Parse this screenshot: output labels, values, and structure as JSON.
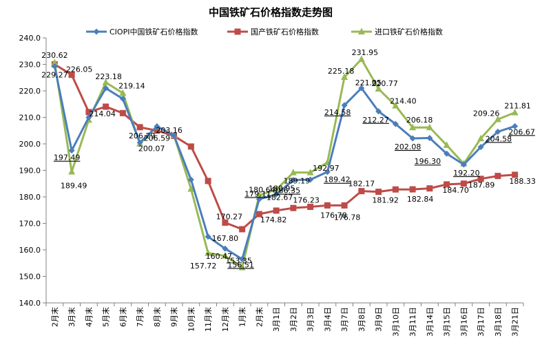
{
  "chart_data": {
    "type": "line",
    "title": "中国铁矿石价格指数走势图",
    "xlabel": "",
    "ylabel": "",
    "ylim": [
      140.0,
      240.0
    ],
    "yticks": [
      "140.0",
      "150.0",
      "160.0",
      "170.0",
      "180.0",
      "190.0",
      "200.0",
      "210.0",
      "220.0",
      "230.0",
      "240.0"
    ],
    "grid": false,
    "legend_position": "top",
    "categories": [
      "2月末",
      "3月末",
      "4月末",
      "5月末",
      "6月末",
      "7月末",
      "8月末",
      "9月末",
      "10月末",
      "11月末",
      "12月末",
      "1月末",
      "2月末",
      "3月1日",
      "3月2日",
      "3月3日",
      "3月4日",
      "3月7日",
      "3月8日",
      "3月9日",
      "3月10日",
      "3月11日",
      "3月14日",
      "3月15日",
      "3月16日",
      "3月17日",
      "3月18日",
      "3月21日"
    ],
    "series": [
      {
        "name": "CIOPI中国铁矿石价格指数",
        "color": "#4a7ebb",
        "marker": "diamond",
        "values": [
          229.27,
          197.49,
          210.0,
          221.0,
          217.0,
          200.5,
          206.59,
          203.16,
          186.5,
          165.0,
          160.47,
          156.51,
          179.11,
          180.95,
          186.35,
          186.5,
          189.42,
          214.58,
          221.05,
          212.27,
          207.5,
          202.08,
          202.2,
          196.3,
          192.2,
          198.8,
          204.58,
          206.67
        ]
      },
      {
        "name": "国产铁矿石价格指数",
        "color": "#be4b48",
        "marker": "square",
        "values": [
          230.0,
          226.05,
          212.0,
          214.04,
          211.6,
          206.29,
          205.0,
          203.0,
          199.0,
          186.0,
          170.27,
          167.8,
          173.5,
          174.82,
          175.8,
          176.23,
          176.78,
          176.78,
          182.17,
          181.92,
          182.8,
          182.84,
          183.2,
          184.7,
          185.0,
          186.8,
          187.89,
          188.33
        ]
      },
      {
        "name": "进口铁矿石价格指数",
        "color": "#98b954",
        "marker": "triangle",
        "values": [
          230.62,
          189.49,
          209.0,
          223.18,
          219.14,
          200.07,
          206.59,
          203.16,
          183.0,
          158.8,
          157.72,
          153.35,
          180.64,
          182.67,
          189.19,
          189.2,
          192.97,
          225.18,
          231.95,
          220.77,
          214.4,
          206.18,
          206.2,
          199.5,
          192.5,
          202.0,
          209.26,
          211.81
        ]
      }
    ],
    "annotations": [
      {
        "text": "230.62",
        "ci": 0,
        "v": 230.62,
        "underline": false
      },
      {
        "text": "229.27",
        "ci": 0,
        "v": 229.27,
        "underline": false
      },
      {
        "text": "226.05",
        "ci": 1,
        "v": 226.05,
        "underline": false
      },
      {
        "text": "197.49",
        "ci": 1,
        "v": 197.49,
        "underline": true
      },
      {
        "text": "189.49",
        "ci": 1,
        "v": 189.49,
        "underline": false
      },
      {
        "text": "223.18",
        "ci": 3,
        "v": 223.18,
        "underline": false
      },
      {
        "text": "214.04",
        "ci": 3,
        "v": 214.04,
        "underline": false
      },
      {
        "text": "219.14",
        "ci": 4,
        "v": 219.14,
        "underline": false
      },
      {
        "text": "206.29",
        "ci": 5,
        "v": 206.29,
        "underline": false
      },
      {
        "text": "200.07",
        "ci": 5,
        "v": 200.07,
        "underline": false
      },
      {
        "text": "206.59",
        "ci": 6,
        "v": 206.59,
        "underline": false
      },
      {
        "text": "203.16",
        "ci": 7,
        "v": 203.16,
        "underline": false
      },
      {
        "text": "170.27",
        "ci": 10,
        "v": 170.27,
        "underline": false
      },
      {
        "text": "167.80",
        "ci": 10,
        "v": 167.8,
        "underline": false
      },
      {
        "text": "160.47",
        "ci": 10,
        "v": 160.47,
        "underline": false
      },
      {
        "text": "157.72",
        "ci": 9,
        "v": 157.72,
        "underline": false
      },
      {
        "text": "156.51",
        "ci": 11,
        "v": 156.51,
        "underline": true
      },
      {
        "text": "153.35",
        "ci": 11,
        "v": 153.35,
        "underline": false
      },
      {
        "text": "180.64",
        "ci": 12,
        "v": 180.64,
        "underline": false
      },
      {
        "text": "179.11",
        "ci": 12,
        "v": 179.11,
        "underline": true
      },
      {
        "text": "182.67",
        "ci": 13,
        "v": 182.67,
        "underline": false
      },
      {
        "text": "180.95",
        "ci": 13,
        "v": 180.95,
        "underline": false
      },
      {
        "text": "174.82",
        "ci": 13,
        "v": 174.82,
        "underline": false
      },
      {
        "text": "189.19",
        "ci": 14,
        "v": 189.19,
        "underline": false
      },
      {
        "text": "186.35",
        "ci": 14,
        "v": 186.35,
        "underline": true
      },
      {
        "text": "176.23",
        "ci": 15,
        "v": 176.23,
        "underline": false
      },
      {
        "text": "192.97",
        "ci": 16,
        "v": 192.97,
        "underline": false
      },
      {
        "text": "189.42",
        "ci": 16,
        "v": 189.42,
        "underline": true
      },
      {
        "text": "176.78",
        "ci": 16,
        "v": 176.78,
        "underline": false
      },
      {
        "text": "176.78",
        "ci": 17,
        "v": 176.78,
        "underline": false
      },
      {
        "text": "225.18",
        "ci": 17,
        "v": 225.18,
        "underline": false
      },
      {
        "text": "214.58",
        "ci": 17,
        "v": 214.58,
        "underline": true
      },
      {
        "text": "231.95",
        "ci": 18,
        "v": 231.95,
        "underline": false
      },
      {
        "text": "221.05",
        "ci": 18,
        "v": 221.05,
        "underline": false
      },
      {
        "text": "182.17",
        "ci": 18,
        "v": 182.17,
        "underline": false
      },
      {
        "text": "181.92",
        "ci": 19,
        "v": 181.92,
        "underline": false
      },
      {
        "text": "220.77",
        "ci": 19,
        "v": 220.77,
        "underline": false
      },
      {
        "text": "212.27",
        "ci": 19,
        "v": 212.27,
        "underline": true
      },
      {
        "text": "214.40",
        "ci": 20,
        "v": 214.4,
        "underline": false
      },
      {
        "text": "206.18",
        "ci": 21,
        "v": 206.18,
        "underline": false
      },
      {
        "text": "202.08",
        "ci": 21,
        "v": 202.08,
        "underline": true
      },
      {
        "text": "182.84",
        "ci": 21,
        "v": 182.84,
        "underline": false
      },
      {
        "text": "196.30",
        "ci": 22,
        "v": 196.3,
        "underline": true
      },
      {
        "text": "184.70",
        "ci": 23,
        "v": 184.7,
        "underline": false
      },
      {
        "text": "192.20",
        "ci": 24,
        "v": 192.2,
        "underline": true
      },
      {
        "text": "209.26",
        "ci": 25,
        "v": 209.26,
        "underline": false
      },
      {
        "text": "187.89",
        "ci": 25,
        "v": 187.89,
        "underline": false
      },
      {
        "text": "204.58",
        "ci": 26,
        "v": 204.58,
        "underline": true
      },
      {
        "text": "211.81",
        "ci": 27,
        "v": 211.81,
        "underline": false
      },
      {
        "text": "206.67",
        "ci": 27,
        "v": 206.67,
        "underline": true
      },
      {
        "text": "188.33",
        "ci": 27,
        "v": 188.33,
        "underline": false
      }
    ]
  }
}
